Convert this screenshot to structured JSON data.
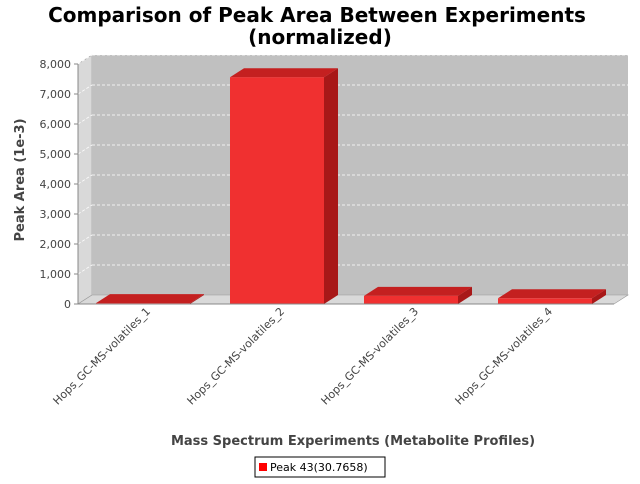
{
  "chart_data": {
    "type": "bar",
    "title_lines": [
      "Comparison of Peak Area Between Experiments",
      "(normalized)"
    ],
    "xlabel": "Mass Spectrum Experiments (Metabolite Profiles)",
    "ylabel": "Peak Area (1e-3)",
    "categories": [
      "Hops_GC-MS-volatiles_1",
      "Hops_GC-MS-volatiles_2",
      "Hops_GC-MS-volatiles_3",
      "Hops_GC-MS-volatiles_4"
    ],
    "series": [
      {
        "name": "Peak 43(30.7658)",
        "values": [
          30,
          7560,
          270,
          190
        ],
        "color": "#ff0000"
      }
    ],
    "ylim": [
      0,
      8000
    ],
    "yticks": [
      0,
      1000,
      2000,
      3000,
      4000,
      5000,
      6000,
      7000,
      8000
    ],
    "ytick_labels": [
      "0",
      "1,000",
      "2,000",
      "3,000",
      "4,000",
      "5,000",
      "6,000",
      "7,000",
      "8,000"
    ],
    "grid": true,
    "legend_position": "bottom-center",
    "style": "3d"
  }
}
